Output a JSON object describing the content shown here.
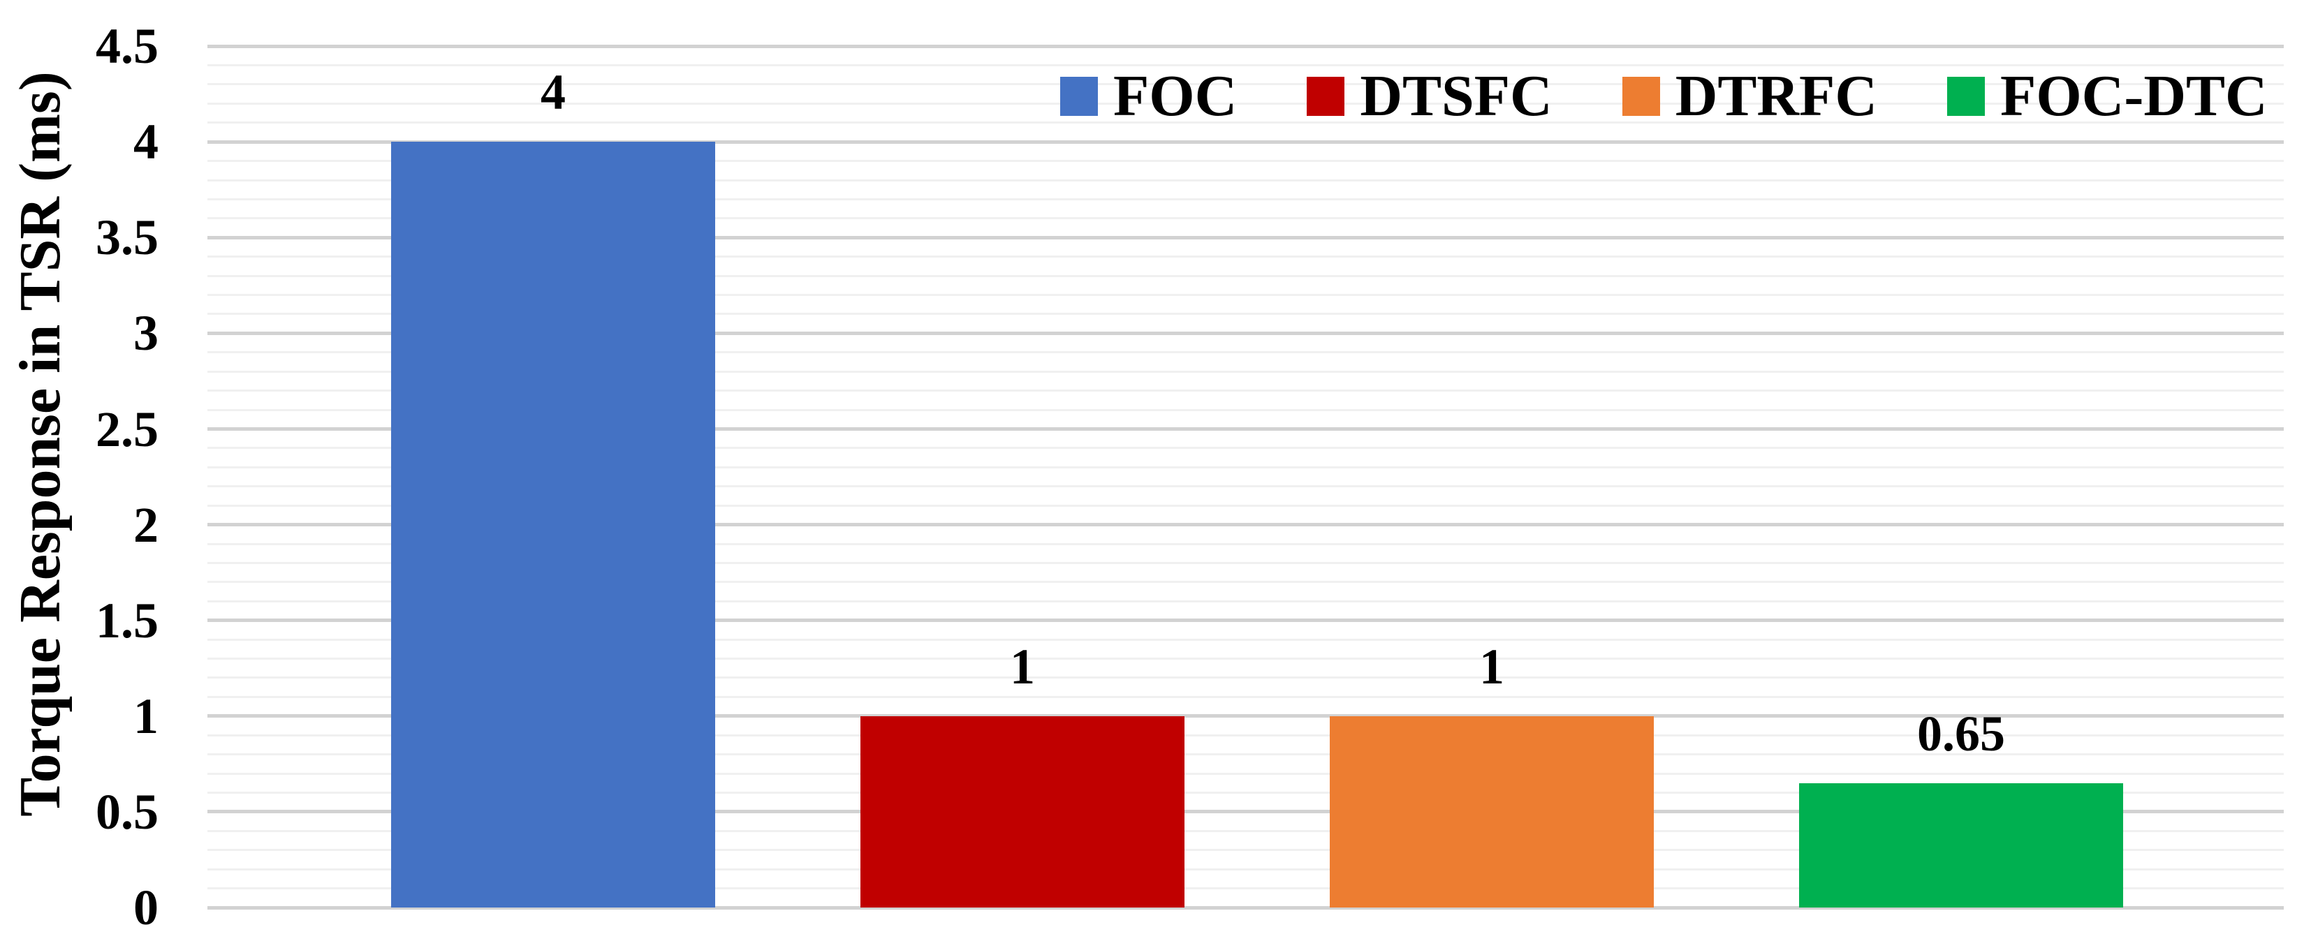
{
  "chart_data": {
    "type": "bar",
    "title": "",
    "ylabel": "Torque Response in TSR (ms)",
    "xlabel": "",
    "categories": [
      "FOC",
      "DTSFC",
      "DTRFC",
      "FOC-DTC"
    ],
    "values": [
      4,
      1,
      1,
      0.65
    ],
    "data_labels": [
      "4",
      "1",
      "1",
      "0.65"
    ],
    "ylim": [
      0,
      4.5
    ],
    "ytick_step": 0.5,
    "minor_grid_step": 0.1,
    "yticks": [
      "0",
      "0.5",
      "1",
      "1.5",
      "2",
      "2.5",
      "3",
      "3.5",
      "4",
      "4.5"
    ],
    "grid": "horizontal major and minor gridlines, no vertical axis line, no x-axis category labels",
    "legend_position": "top-right inside plot",
    "legend": [
      {
        "label": "FOC",
        "color": "#4472C4"
      },
      {
        "label": "DTSFC",
        "color": "#C00000"
      },
      {
        "label": "DTRFC",
        "color": "#ED7D31"
      },
      {
        "label": "FOC-DTC",
        "color": "#00B050"
      }
    ],
    "colors": {
      "grid_major": "#D2D2D2",
      "grid_minor": "#F0F0F0",
      "text": "#000000",
      "background": "#FFFFFF"
    }
  }
}
